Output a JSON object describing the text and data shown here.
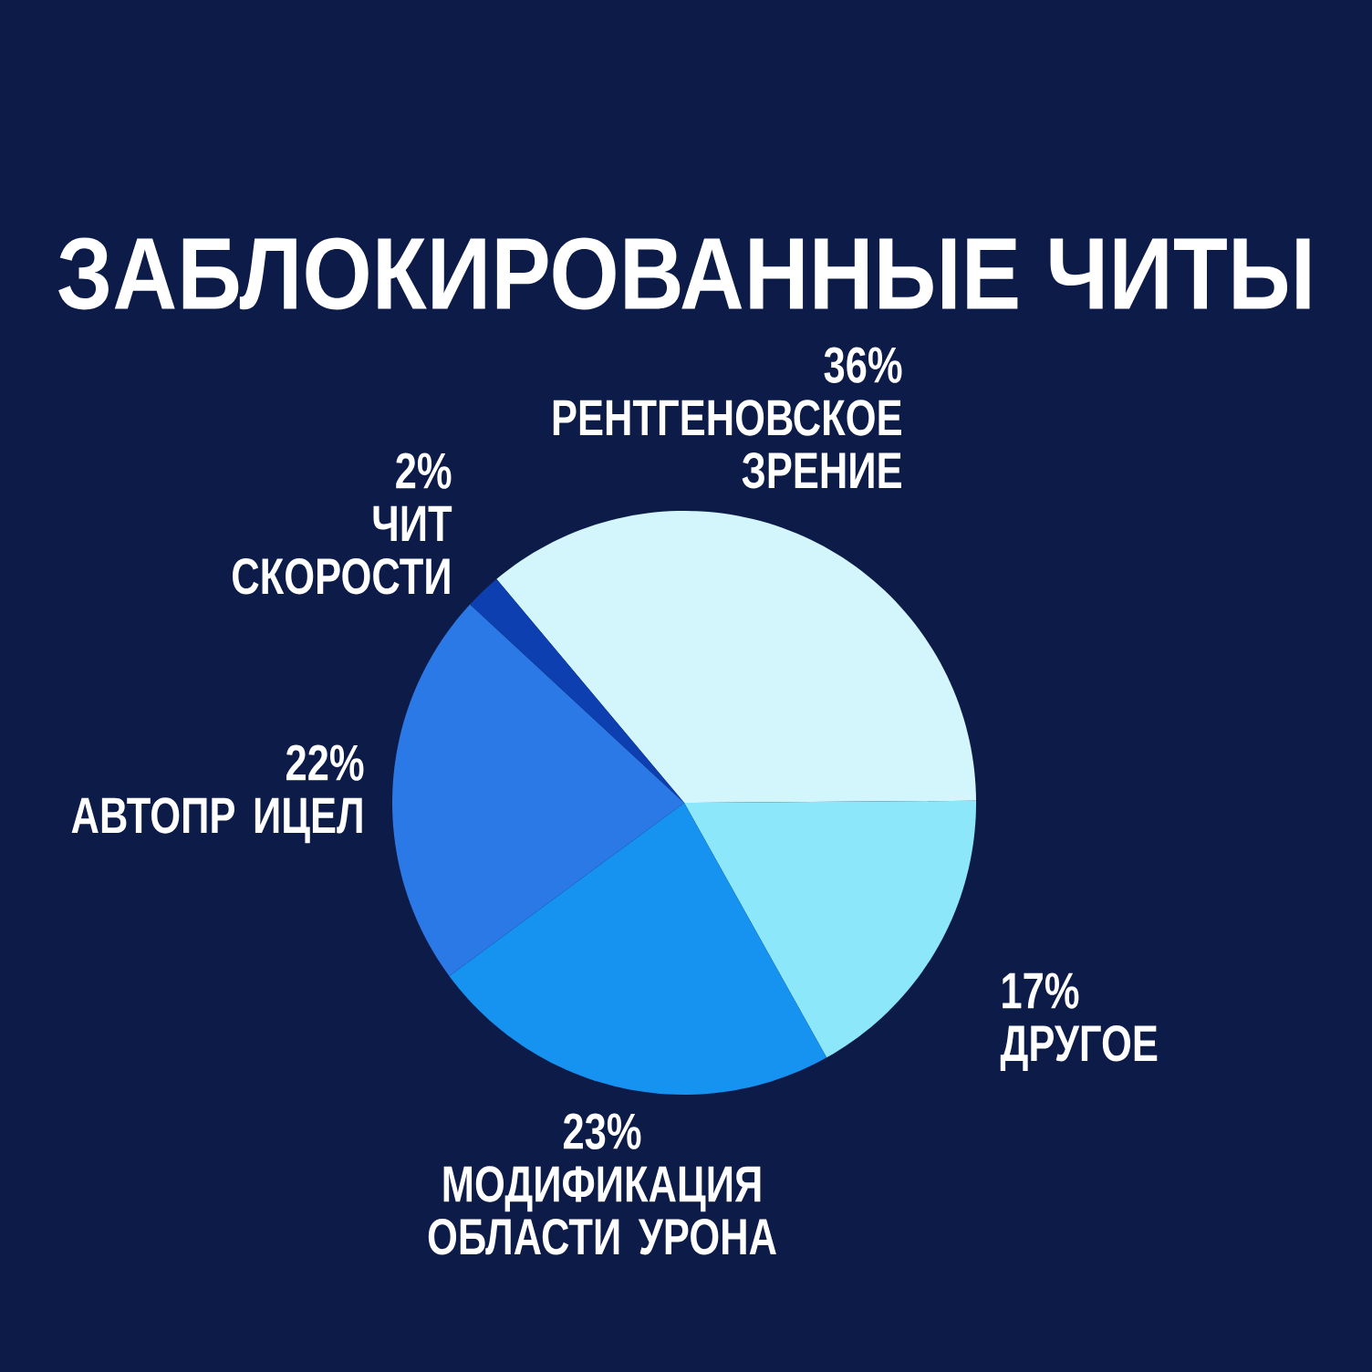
{
  "chart_data": {
    "type": "pie",
    "title": "ЗАБЛОКИРОВАННЫЕ ЧИТЫ",
    "categories": [
      "РЕНТГЕНОВСКОЕ ЗРЕНИЕ",
      "ДРУГОЕ",
      "МОДИФИКАЦИЯ ОБЛАСТИ УРОНА",
      "АВТОПР ИЦЕЛ",
      "ЧИТ СКОРОСТИ"
    ],
    "values": [
      36,
      17,
      23,
      22,
      2
    ],
    "value_labels": [
      "36%",
      "17%",
      "23%",
      "22%",
      "2%"
    ],
    "colors": [
      "#d3f6fc",
      "#8de7fb",
      "#1693f0",
      "#2b79e6",
      "#0e3fb0"
    ]
  }
}
